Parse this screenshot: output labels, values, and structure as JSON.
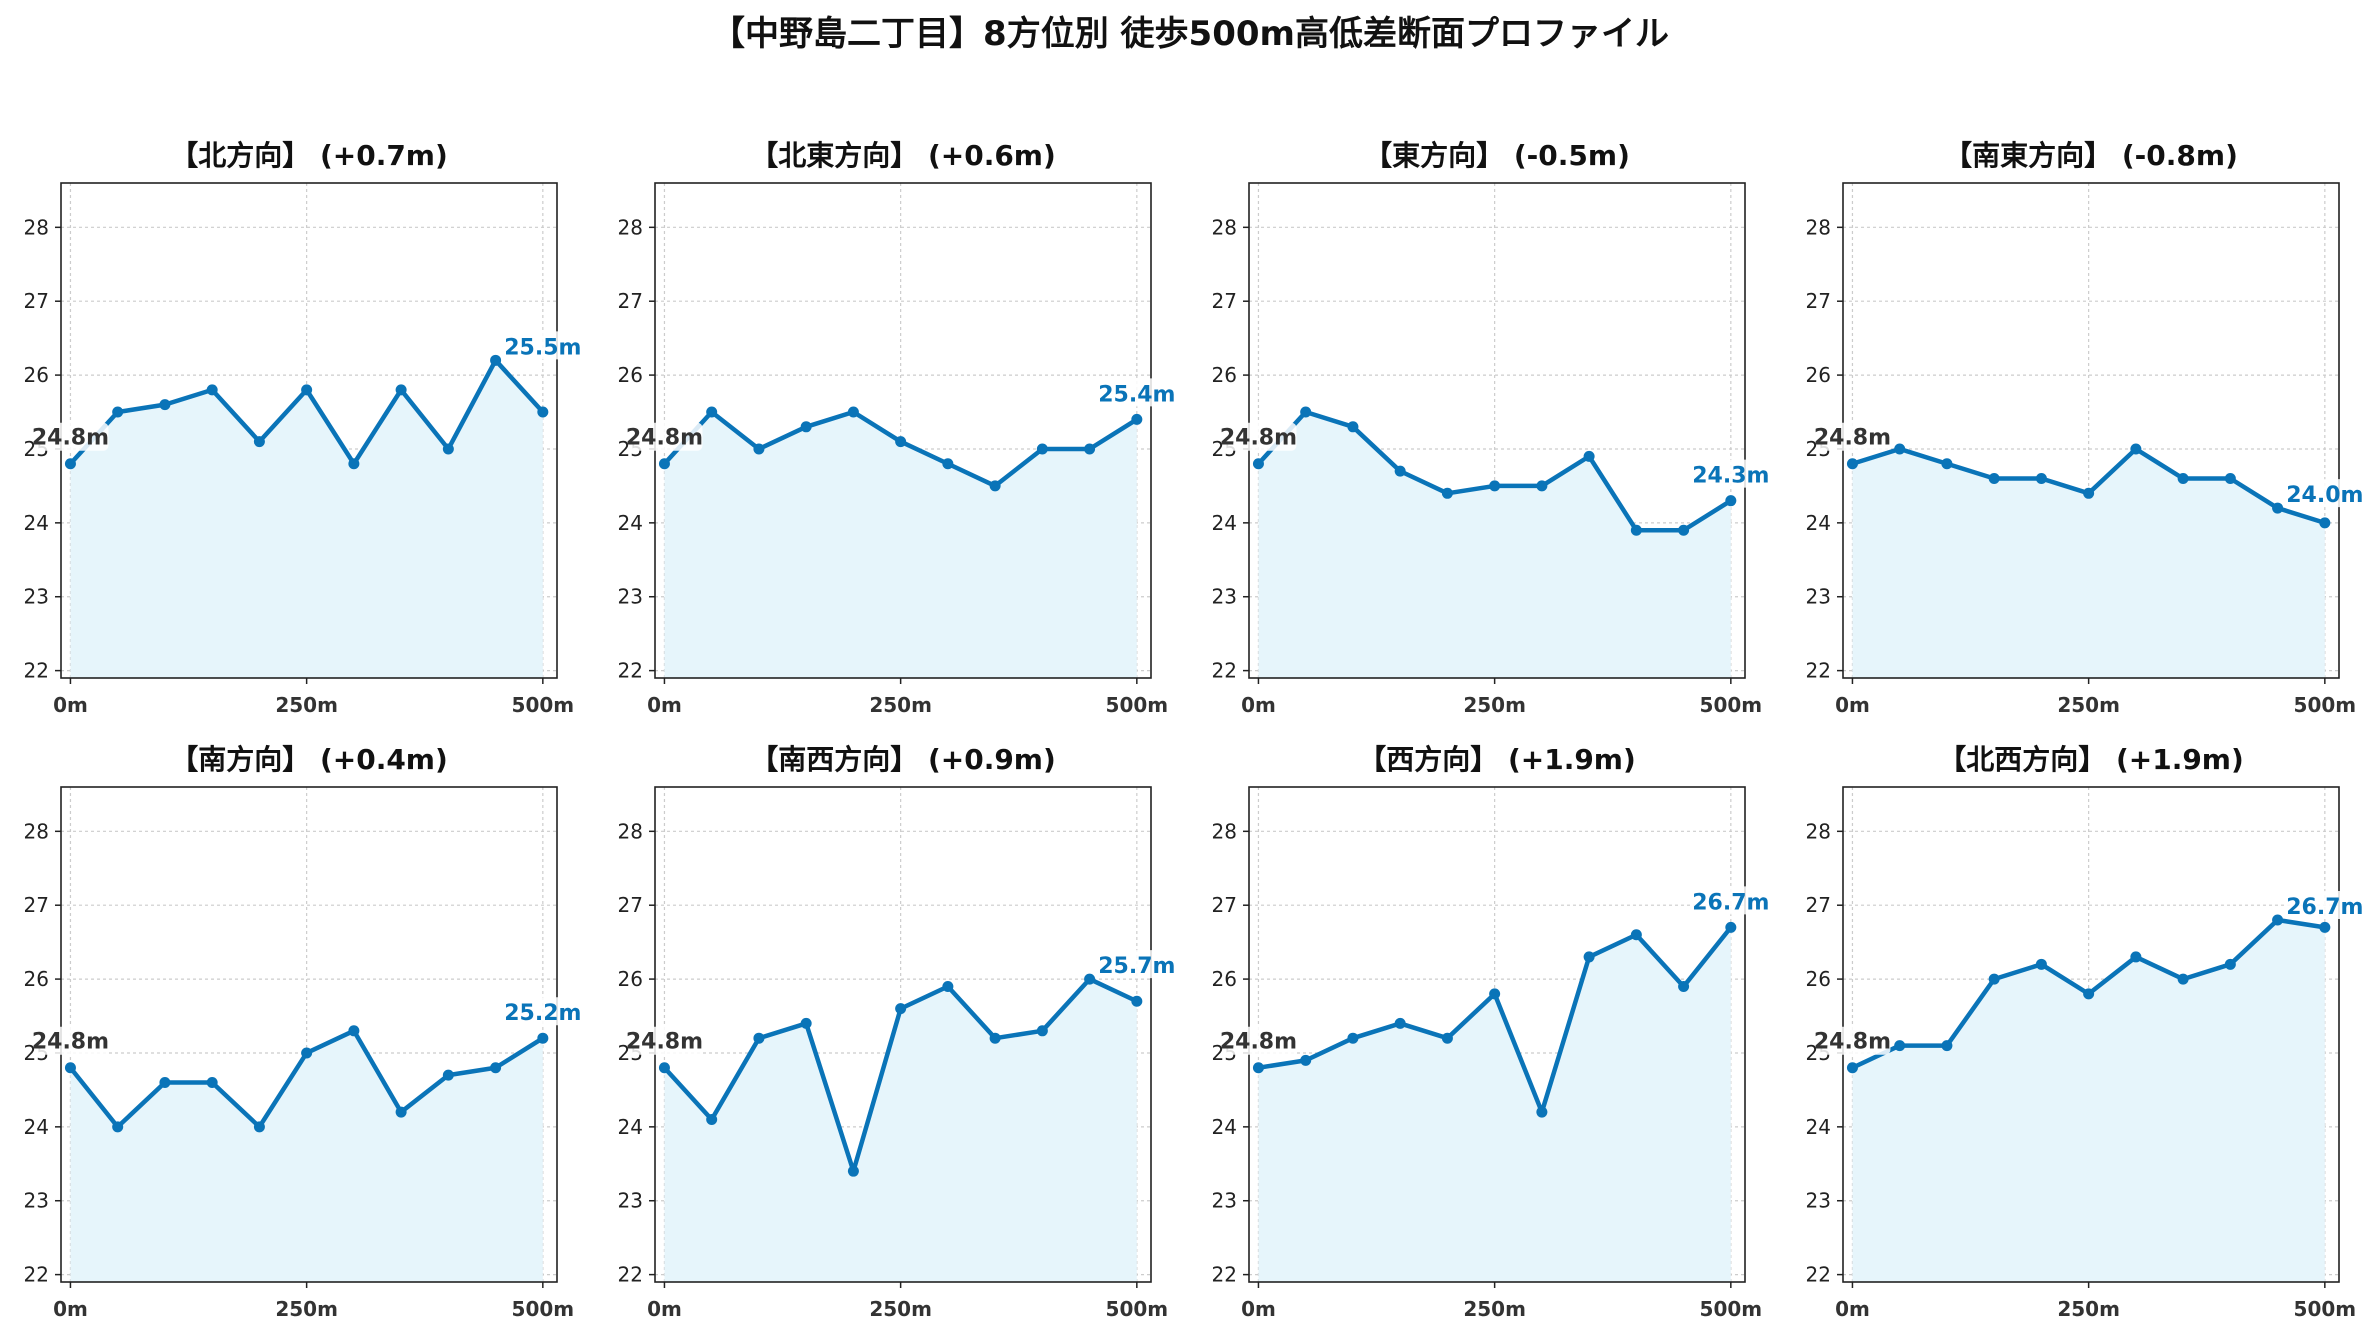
{
  "title": "【中野島二丁目】8方位別 徒歩500m高低差断面プロファイル",
  "colors": {
    "line": "#0a74b8",
    "fill": "#e6f5fb",
    "grid": "#cccccc",
    "start_label": "#333333",
    "end_label": "#0a74b8"
  },
  "chart_data": [
    {
      "type": "area",
      "title": "【北方向】 (+0.7m)",
      "x": [
        0,
        50,
        100,
        150,
        200,
        250,
        300,
        350,
        400,
        450,
        500
      ],
      "y": [
        24.8,
        25.5,
        25.6,
        25.8,
        25.1,
        25.8,
        24.8,
        25.8,
        25.0,
        26.2,
        25.5
      ],
      "xticks": [
        "0m",
        "250m",
        "500m"
      ],
      "yticks": [
        "22",
        "23",
        "24",
        "25",
        "26",
        "27",
        "28"
      ],
      "ylim": [
        21.9,
        28.6
      ],
      "xlim": [
        -10,
        515
      ],
      "start_label": "24.8m",
      "end_label": "25.5m",
      "grid": true
    },
    {
      "type": "area",
      "title": "【北東方向】 (+0.6m)",
      "x": [
        0,
        50,
        100,
        150,
        200,
        250,
        300,
        350,
        400,
        450,
        500
      ],
      "y": [
        24.8,
        25.5,
        25.0,
        25.3,
        25.5,
        25.1,
        24.8,
        24.5,
        25.0,
        25.0,
        25.4
      ],
      "xticks": [
        "0m",
        "250m",
        "500m"
      ],
      "yticks": [
        "22",
        "23",
        "24",
        "25",
        "26",
        "27",
        "28"
      ],
      "ylim": [
        21.9,
        28.6
      ],
      "xlim": [
        -10,
        515
      ],
      "start_label": "24.8m",
      "end_label": "25.4m",
      "grid": true
    },
    {
      "type": "area",
      "title": "【東方向】 (-0.5m)",
      "x": [
        0,
        50,
        100,
        150,
        200,
        250,
        300,
        350,
        400,
        450,
        500
      ],
      "y": [
        24.8,
        25.5,
        25.3,
        24.7,
        24.4,
        24.5,
        24.5,
        24.9,
        23.9,
        23.9,
        24.3
      ],
      "xticks": [
        "0m",
        "250m",
        "500m"
      ],
      "yticks": [
        "22",
        "23",
        "24",
        "25",
        "26",
        "27",
        "28"
      ],
      "ylim": [
        21.9,
        28.6
      ],
      "xlim": [
        -10,
        515
      ],
      "start_label": "24.8m",
      "end_label": "24.3m",
      "grid": true
    },
    {
      "type": "area",
      "title": "【南東方向】 (-0.8m)",
      "x": [
        0,
        50,
        100,
        150,
        200,
        250,
        300,
        350,
        400,
        450,
        500
      ],
      "y": [
        24.8,
        25.0,
        24.8,
        24.6,
        24.6,
        24.4,
        25.0,
        24.6,
        24.6,
        24.2,
        24.0
      ],
      "xticks": [
        "0m",
        "250m",
        "500m"
      ],
      "yticks": [
        "22",
        "23",
        "24",
        "25",
        "26",
        "27",
        "28"
      ],
      "ylim": [
        21.9,
        28.6
      ],
      "xlim": [
        -10,
        515
      ],
      "start_label": "24.8m",
      "end_label": "24.0m",
      "grid": true
    },
    {
      "type": "area",
      "title": "【南方向】 (+0.4m)",
      "x": [
        0,
        50,
        100,
        150,
        200,
        250,
        300,
        350,
        400,
        450,
        500
      ],
      "y": [
        24.8,
        24.0,
        24.6,
        24.6,
        24.0,
        25.0,
        25.3,
        24.2,
        24.7,
        24.8,
        25.2
      ],
      "xticks": [
        "0m",
        "250m",
        "500m"
      ],
      "yticks": [
        "22",
        "23",
        "24",
        "25",
        "26",
        "27",
        "28"
      ],
      "ylim": [
        21.9,
        28.6
      ],
      "xlim": [
        -10,
        515
      ],
      "start_label": "24.8m",
      "end_label": "25.2m",
      "grid": true
    },
    {
      "type": "area",
      "title": "【南西方向】 (+0.9m)",
      "x": [
        0,
        50,
        100,
        150,
        200,
        250,
        300,
        350,
        400,
        450,
        500
      ],
      "y": [
        24.8,
        24.1,
        25.2,
        25.4,
        23.4,
        25.6,
        25.9,
        25.2,
        25.3,
        26.0,
        25.7
      ],
      "xticks": [
        "0m",
        "250m",
        "500m"
      ],
      "yticks": [
        "22",
        "23",
        "24",
        "25",
        "26",
        "27",
        "28"
      ],
      "ylim": [
        21.9,
        28.6
      ],
      "xlim": [
        -10,
        515
      ],
      "start_label": "24.8m",
      "end_label": "25.7m",
      "grid": true
    },
    {
      "type": "area",
      "title": "【西方向】 (+1.9m)",
      "x": [
        0,
        50,
        100,
        150,
        200,
        250,
        300,
        350,
        400,
        450,
        500
      ],
      "y": [
        24.8,
        24.9,
        25.2,
        25.4,
        25.2,
        25.8,
        24.2,
        26.3,
        26.6,
        25.9,
        26.7
      ],
      "xticks": [
        "0m",
        "250m",
        "500m"
      ],
      "yticks": [
        "22",
        "23",
        "24",
        "25",
        "26",
        "27",
        "28"
      ],
      "ylim": [
        21.9,
        28.6
      ],
      "xlim": [
        -10,
        515
      ],
      "start_label": "24.8m",
      "end_label": "26.7m",
      "grid": true
    },
    {
      "type": "area",
      "title": "【北西方向】 (+1.9m)",
      "x": [
        0,
        50,
        100,
        150,
        200,
        250,
        300,
        350,
        400,
        450,
        500
      ],
      "y": [
        24.8,
        25.1,
        25.1,
        26.0,
        26.2,
        25.8,
        26.3,
        26.0,
        26.2,
        26.8,
        26.7
      ],
      "xticks": [
        "0m",
        "250m",
        "500m"
      ],
      "yticks": [
        "22",
        "23",
        "24",
        "25",
        "26",
        "27",
        "28"
      ],
      "ylim": [
        21.9,
        28.6
      ],
      "xlim": [
        -10,
        515
      ],
      "start_label": "24.8m",
      "end_label": "26.7m",
      "grid": true
    }
  ]
}
